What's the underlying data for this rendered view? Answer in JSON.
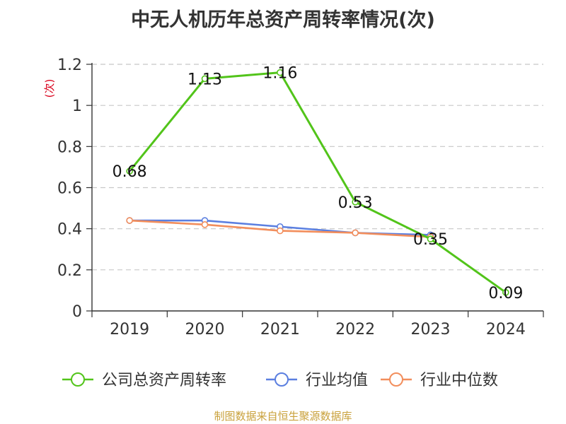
{
  "title": "中无人机历年总资产周转率情况(次)",
  "source": "制图数据来自恒生聚源数据库",
  "chart_data": {
    "type": "line",
    "title": "中无人机历年总资产周转率情况(次)",
    "ylabel": "(次)",
    "xlabel": "",
    "categories": [
      "2019",
      "2020",
      "2021",
      "2022",
      "2023",
      "2024"
    ],
    "ylim": [
      0,
      1.2
    ],
    "yticks": [
      0,
      0.2,
      0.4,
      0.6,
      0.8,
      1,
      1.2
    ],
    "ytick_labels": [
      "0",
      "0.2",
      "0.4",
      "0.6",
      "0.8",
      "1",
      "1.2"
    ],
    "grid": true,
    "legend_position": "bottom",
    "series": [
      {
        "name": "公司总资产周转率",
        "color": "#52c41a",
        "values": [
          0.68,
          1.13,
          1.16,
          0.53,
          0.35,
          0.09
        ],
        "labels": [
          "0.68",
          "1.13",
          "1.16",
          "0.53",
          "0.35",
          "0.09"
        ]
      },
      {
        "name": "行业均值",
        "color": "#5b7fe0",
        "values": [
          0.44,
          0.44,
          0.41,
          0.38,
          0.37,
          null
        ]
      },
      {
        "name": "行业中位数",
        "color": "#f28e5c",
        "values": [
          0.44,
          0.42,
          0.39,
          0.38,
          0.36,
          null
        ]
      }
    ]
  }
}
